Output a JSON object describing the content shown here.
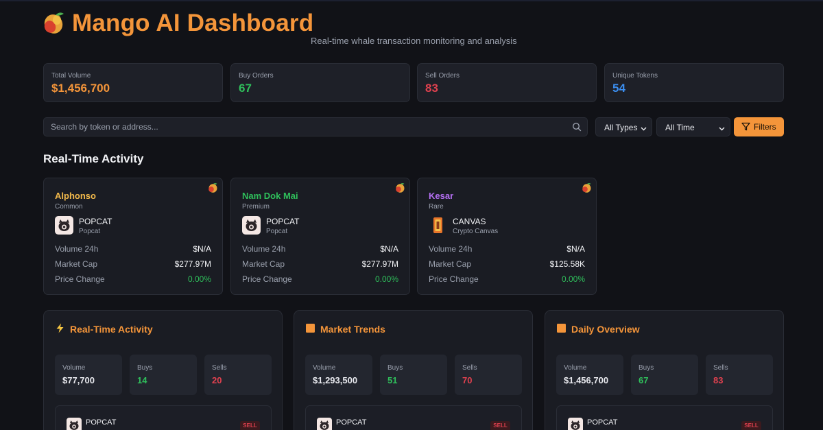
{
  "header": {
    "title": "Mango AI Dashboard",
    "subtitle": "Real-time whale transaction monitoring and analysis",
    "logo_icon": "mango-icon"
  },
  "stats": [
    {
      "label": "Total Volume",
      "value": "$1,456,700",
      "color": "#f4953a"
    },
    {
      "label": "Buy Orders",
      "value": "67",
      "color": "#2fbf5b"
    },
    {
      "label": "Sell Orders",
      "value": "83",
      "color": "#e0414f"
    },
    {
      "label": "Unique Tokens",
      "value": "54",
      "color": "#3b8ef0"
    }
  ],
  "search": {
    "placeholder": "Search by token or address...",
    "value": ""
  },
  "filters": {
    "type_select": "All Types",
    "time_select": "All Time",
    "button_label": "Filters"
  },
  "activity": {
    "title": "Real-Time Activity",
    "cards": [
      {
        "mango": "Alphonso",
        "rarity": "Common",
        "name_color": "#f2b94b",
        "token_symbol": "POPCAT",
        "token_name": "Popcat",
        "token_icon": "popcat-icon",
        "volume_label": "Volume 24h",
        "volume": "$N/A",
        "mcap_label": "Market Cap",
        "mcap": "$277.97M",
        "change_label": "Price Change",
        "change": "0.00%"
      },
      {
        "mango": "Nam Dok Mai",
        "rarity": "Premium",
        "name_color": "#2fbf5b",
        "token_symbol": "POPCAT",
        "token_name": "Popcat",
        "token_icon": "popcat-icon",
        "volume_label": "Volume 24h",
        "volume": "$N/A",
        "mcap_label": "Market Cap",
        "mcap": "$277.97M",
        "change_label": "Price Change",
        "change": "0.00%"
      },
      {
        "mango": "Kesar",
        "rarity": "Rare",
        "name_color": "#b46ff2",
        "token_symbol": "CANVAS",
        "token_name": "Crypto Canvas",
        "token_icon": "canvas-icon",
        "volume_label": "Volume 24h",
        "volume": "$N/A",
        "mcap_label": "Market Cap",
        "mcap": "$125.58K",
        "change_label": "Price Change",
        "change": "0.00%"
      }
    ]
  },
  "panels": [
    {
      "title": "Real-Time Activity",
      "icon": "lightning-icon",
      "volume_label": "Volume",
      "volume": "$77,700",
      "buys_label": "Buys",
      "buys": "14",
      "sells_label": "Sells",
      "sells": "20",
      "tx_symbol": "POPCAT",
      "tx_badge": "SELL"
    },
    {
      "title": "Market Trends",
      "icon": "orange-square-icon",
      "volume_label": "Volume",
      "volume": "$1,293,500",
      "buys_label": "Buys",
      "buys": "51",
      "sells_label": "Sells",
      "sells": "70",
      "tx_symbol": "POPCAT",
      "tx_badge": "SELL"
    },
    {
      "title": "Daily Overview",
      "icon": "orange-square-icon",
      "volume_label": "Volume",
      "volume": "$1,456,700",
      "buys_label": "Buys",
      "buys": "67",
      "sells_label": "Sells",
      "sells": "83",
      "tx_symbol": "POPCAT",
      "tx_badge": "SELL"
    }
  ]
}
